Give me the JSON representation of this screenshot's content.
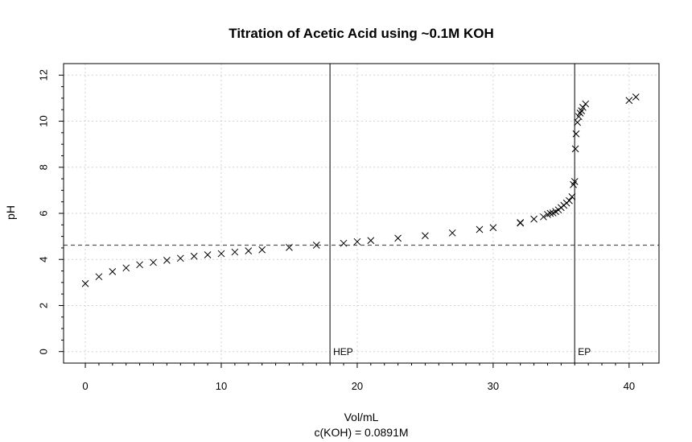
{
  "chart_data": {
    "type": "scatter",
    "title": "Titration of Acetic Acid using ~0.1M KOH",
    "xlabel": "Vol/mL",
    "xlabel_sub": "c(KOH) = 0.0891M",
    "ylabel": "pH",
    "xlim": [
      -1.6,
      42.2
    ],
    "ylim": [
      -0.5,
      12.5
    ],
    "xticks": [
      0,
      10,
      20,
      30,
      40
    ],
    "yticks": [
      0,
      2,
      4,
      6,
      8,
      10,
      12
    ],
    "grid": true,
    "marker": "x",
    "series": [
      {
        "x": [
          0,
          1,
          2,
          3,
          4,
          5,
          6,
          7,
          8,
          9,
          10,
          11,
          12,
          13,
          15,
          17,
          19,
          20,
          21,
          23,
          25,
          27,
          29,
          30,
          32,
          32,
          33,
          33.7,
          34,
          34.2,
          34.4,
          34.6,
          34.8,
          35,
          35.2,
          35.4,
          35.6,
          35.8,
          35.9,
          36.0,
          36.05,
          36.1,
          36.2,
          36.3,
          36.4,
          36.5,
          36.6,
          36.8,
          40,
          40.5
        ],
        "y": [
          2.95,
          3.25,
          3.47,
          3.63,
          3.77,
          3.87,
          3.96,
          4.05,
          4.14,
          4.2,
          4.25,
          4.32,
          4.37,
          4.42,
          4.52,
          4.62,
          4.7,
          4.77,
          4.82,
          4.92,
          5.03,
          5.15,
          5.3,
          5.38,
          5.58,
          5.6,
          5.75,
          5.85,
          5.95,
          6.0,
          6.02,
          6.08,
          6.15,
          6.25,
          6.35,
          6.45,
          6.55,
          6.72,
          7.25,
          7.38,
          8.8,
          9.45,
          9.95,
          10.2,
          10.35,
          10.45,
          10.6,
          10.75,
          10.9,
          11.05
        ]
      }
    ],
    "annotations": [
      {
        "label": "HEP",
        "x": 18.0
      },
      {
        "label": "EP",
        "x": 36.0
      },
      {
        "label": "",
        "y": 4.62
      }
    ]
  }
}
